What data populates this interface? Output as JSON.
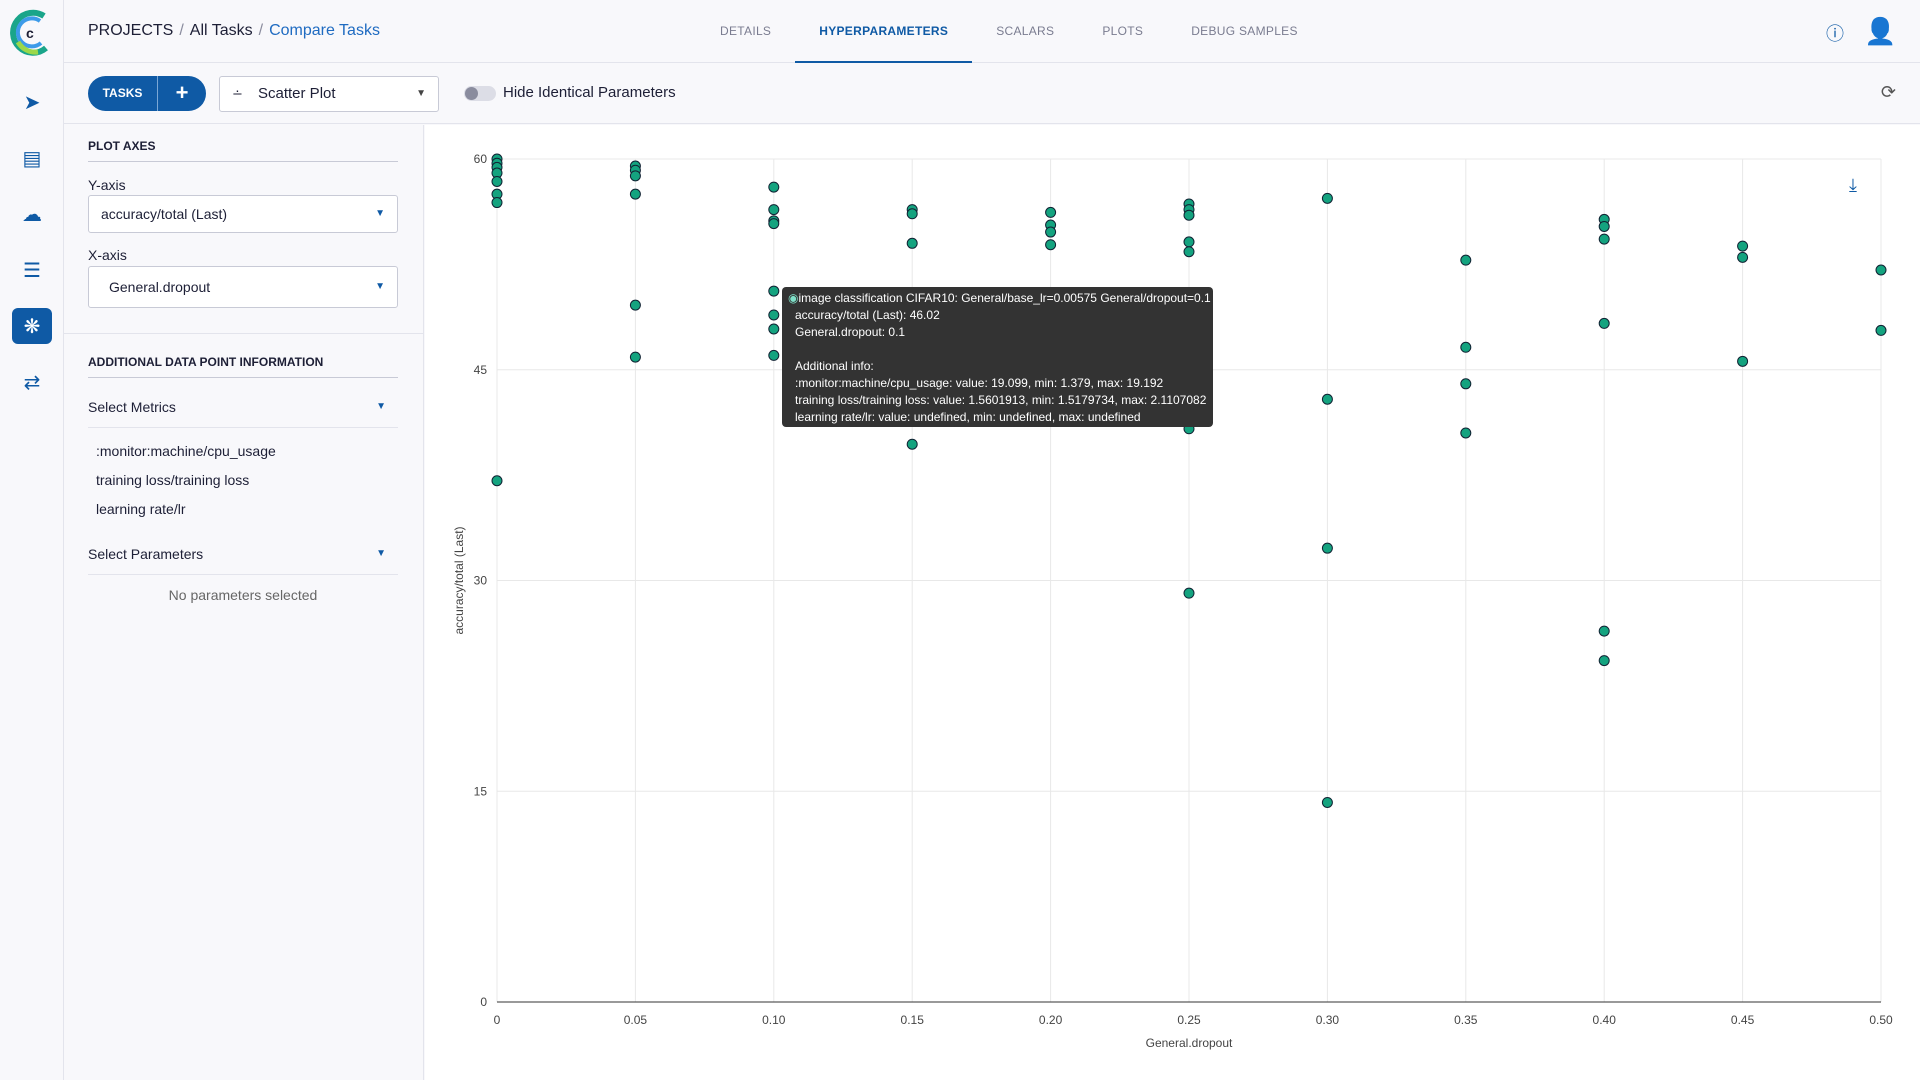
{
  "breadcrumb": {
    "projects": "PROJECTS",
    "all_tasks": "All Tasks",
    "current": "Compare Tasks"
  },
  "tabs": [
    {
      "label": "DETAILS"
    },
    {
      "label": "HYPERPARAMETERS",
      "active": true
    },
    {
      "label": "SCALARS"
    },
    {
      "label": "PLOTS"
    },
    {
      "label": "DEBUG SAMPLES"
    }
  ],
  "toolbar": {
    "tasks_label": "TASKS",
    "add_label": "+",
    "plot_type": "Scatter Plot",
    "hide_identical_label": "Hide Identical Parameters",
    "hide_identical_on": false
  },
  "left_panel": {
    "plot_axes_title": "PLOT AXES",
    "y_axis_label": "Y-axis",
    "y_axis_value": "accuracy/total (Last)",
    "x_axis_label": "X-axis",
    "x_axis_value": "General.dropout",
    "additional_title": "ADDITIONAL DATA POINT INFORMATION",
    "select_metrics": "Select Metrics",
    "metrics": [
      ":monitor:machine/cpu_usage",
      "training loss/training loss",
      "learning rate/lr"
    ],
    "select_parameters": "Select Parameters",
    "no_parameters": "No parameters selected"
  },
  "tooltip": {
    "lines": [
      "image classification CIFAR10: General/base_lr=0.00575 General/dropout=0.1",
      "accuracy/total (Last): 46.02",
      "General.dropout: 0.1",
      "",
      "Additional info:",
      ":monitor:machine/cpu_usage: value: 19.099, min: 1.379, max: 19.192",
      "training loss/training loss: value: 1.5601913, min: 1.5179734, max: 2.1107082",
      "learning rate/lr: value: undefined, min: undefined, max: undefined"
    ]
  },
  "colors": {
    "accent": "#0f5aa5",
    "point": "#14a37f"
  },
  "chart_data": {
    "type": "scatter",
    "xlabel": "General.dropout",
    "ylabel": "accuracy/total (Last)",
    "xlim": [
      0,
      0.5
    ],
    "ylim": [
      0,
      60
    ],
    "xticks": [
      "0",
      "0.05",
      "0.10",
      "0.15",
      "0.20",
      "0.25",
      "0.30",
      "0.35",
      "0.40",
      "0.45",
      "0.50"
    ],
    "yticks": [
      "0",
      "15",
      "30",
      "45",
      "60"
    ],
    "grid": true,
    "points": [
      [
        0,
        60
      ],
      [
        0,
        59.7
      ],
      [
        0,
        59.4
      ],
      [
        0,
        59.0
      ],
      [
        0,
        58.4
      ],
      [
        0,
        57.5
      ],
      [
        0,
        56.9
      ],
      [
        0,
        37.1
      ],
      [
        0.05,
        59.5
      ],
      [
        0.05,
        59.2
      ],
      [
        0.05,
        58.8
      ],
      [
        0.05,
        57.5
      ],
      [
        0.05,
        49.6
      ],
      [
        0.05,
        45.9
      ],
      [
        0.1,
        58.0
      ],
      [
        0.1,
        56.4
      ],
      [
        0.1,
        55.6
      ],
      [
        0.1,
        55.4
      ],
      [
        0.1,
        50.6
      ],
      [
        0.1,
        48.9
      ],
      [
        0.1,
        47.9
      ],
      [
        0.1,
        46.02
      ],
      [
        0.15,
        56.4
      ],
      [
        0.15,
        56.1
      ],
      [
        0.15,
        54.0
      ],
      [
        0.15,
        39.7
      ],
      [
        0.2,
        56.2
      ],
      [
        0.2,
        55.3
      ],
      [
        0.2,
        54.8
      ],
      [
        0.2,
        53.9
      ],
      [
        0.25,
        56.8
      ],
      [
        0.25,
        56.4
      ],
      [
        0.25,
        56.0
      ],
      [
        0.25,
        54.1
      ],
      [
        0.25,
        53.4
      ],
      [
        0.25,
        49.7
      ],
      [
        0.25,
        44.6
      ],
      [
        0.25,
        44.5
      ],
      [
        0.25,
        40.8
      ],
      [
        0.25,
        29.1
      ],
      [
        0.3,
        57.2
      ],
      [
        0.3,
        42.9
      ],
      [
        0.3,
        32.3
      ],
      [
        0.3,
        14.2
      ],
      [
        0.35,
        52.8
      ],
      [
        0.35,
        46.6
      ],
      [
        0.35,
        44.0
      ],
      [
        0.35,
        40.5
      ],
      [
        0.4,
        55.7
      ],
      [
        0.4,
        55.2
      ],
      [
        0.4,
        54.3
      ],
      [
        0.4,
        48.3
      ],
      [
        0.4,
        26.4
      ],
      [
        0.4,
        24.3
      ],
      [
        0.45,
        53.8
      ],
      [
        0.45,
        53.0
      ],
      [
        0.45,
        45.6
      ],
      [
        0.5,
        52.1
      ],
      [
        0.5,
        47.8
      ]
    ]
  }
}
